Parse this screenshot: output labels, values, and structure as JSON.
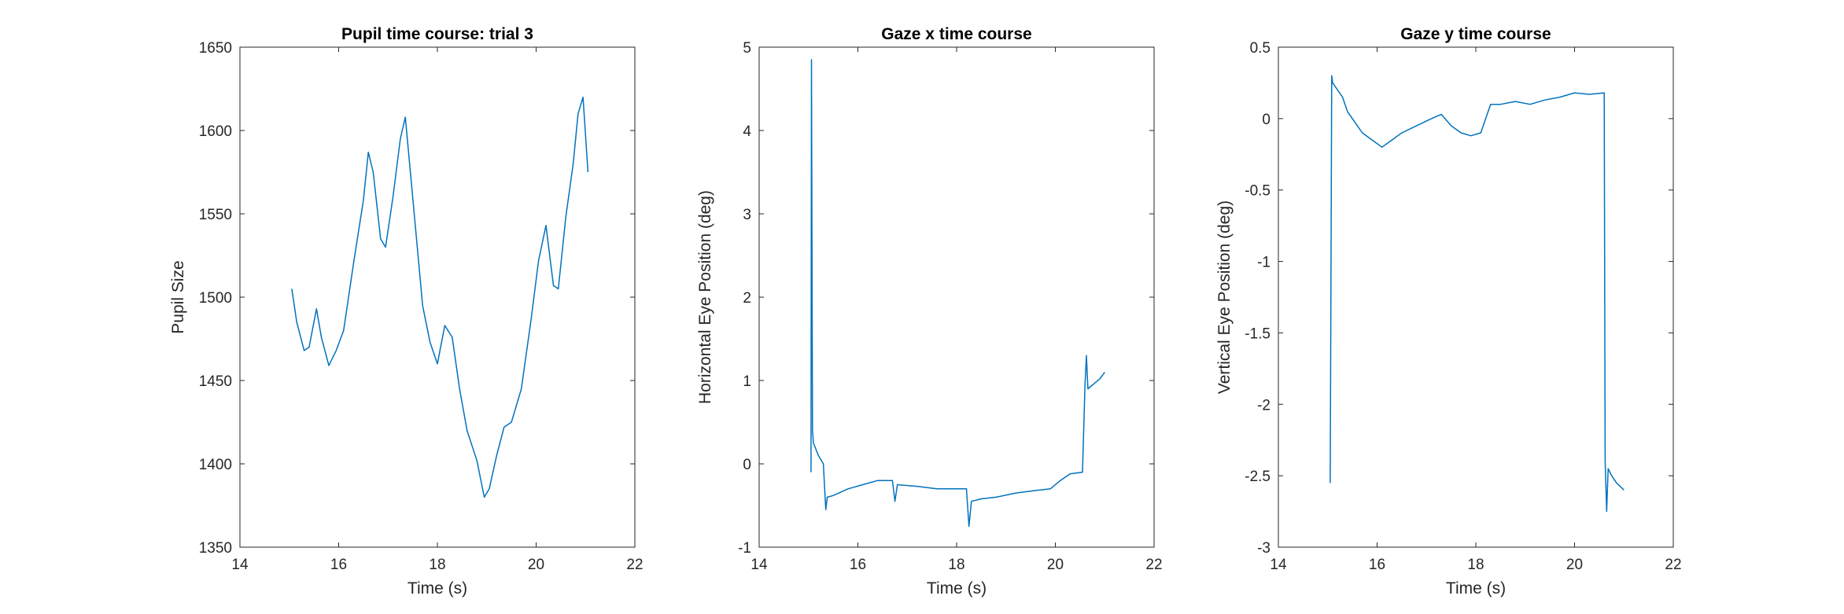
{
  "chart_data": [
    {
      "type": "line",
      "title": "Pupil time course: trial 3",
      "xlabel": "Time (s)",
      "ylabel": "Pupil Size",
      "xlim": [
        14,
        22
      ],
      "ylim": [
        1350,
        1650
      ],
      "xticks": [
        14,
        16,
        18,
        20,
        22
      ],
      "yticks": [
        1350,
        1400,
        1450,
        1500,
        1550,
        1600,
        1650
      ],
      "xtick_labels": [
        "14",
        "16",
        "18",
        "20",
        "22"
      ],
      "ytick_labels": [
        "1350",
        "1400",
        "1450",
        "1500",
        "1550",
        "1600",
        "1650"
      ],
      "color": "#0072BD",
      "series": [
        {
          "x": [
            15.05,
            15.15,
            15.3,
            15.4,
            15.55,
            15.65,
            15.8,
            15.95,
            16.1,
            16.3,
            16.5,
            16.6,
            16.7,
            16.85,
            16.95,
            17.1,
            17.25,
            17.35,
            17.5,
            17.7,
            17.85,
            18.0,
            18.15,
            18.3,
            18.45,
            18.6,
            18.8,
            18.95,
            19.05,
            19.2,
            19.35,
            19.5,
            19.7,
            19.9,
            20.05,
            20.2,
            20.35,
            20.45,
            20.6,
            20.75,
            20.85,
            20.95,
            21.05
          ],
          "y": [
            1505,
            1485,
            1468,
            1470,
            1493,
            1476,
            1459,
            1468,
            1480,
            1520,
            1558,
            1587,
            1575,
            1535,
            1530,
            1560,
            1595,
            1608,
            1560,
            1495,
            1473,
            1460,
            1483,
            1476,
            1445,
            1420,
            1402,
            1380,
            1385,
            1405,
            1422,
            1425,
            1445,
            1487,
            1522,
            1543,
            1507,
            1505,
            1548,
            1580,
            1610,
            1620,
            1575
          ]
        }
      ]
    },
    {
      "type": "line",
      "title": "Gaze x time course",
      "xlabel": "Time (s)",
      "ylabel": "Horizontal Eye Position (deg)",
      "xlim": [
        14,
        22
      ],
      "ylim": [
        -1,
        5
      ],
      "xticks": [
        14,
        16,
        18,
        20,
        22
      ],
      "yticks": [
        -1,
        0,
        1,
        2,
        3,
        4,
        5
      ],
      "xtick_labels": [
        "14",
        "16",
        "18",
        "20",
        "22"
      ],
      "ytick_labels": [
        "-1",
        "0",
        "1",
        "2",
        "3",
        "4",
        "5"
      ],
      "color": "#0072BD",
      "series": [
        {
          "x": [
            15.05,
            15.06,
            15.08,
            15.1,
            15.2,
            15.3,
            15.35,
            15.38,
            15.5,
            15.8,
            16.1,
            16.4,
            16.7,
            16.75,
            16.8,
            17.2,
            17.6,
            18.0,
            18.2,
            18.25,
            18.3,
            18.5,
            18.8,
            19.2,
            19.6,
            19.9,
            20.1,
            20.3,
            20.55,
            20.6,
            20.63,
            20.66,
            20.7,
            20.8,
            20.9,
            21.0
          ],
          "y": [
            -0.1,
            4.85,
            0.4,
            0.25,
            0.1,
            0.0,
            -0.55,
            -0.4,
            -0.38,
            -0.3,
            -0.25,
            -0.2,
            -0.2,
            -0.45,
            -0.25,
            -0.27,
            -0.3,
            -0.3,
            -0.3,
            -0.75,
            -0.45,
            -0.42,
            -0.4,
            -0.35,
            -0.32,
            -0.3,
            -0.2,
            -0.12,
            -0.1,
            0.95,
            1.3,
            0.9,
            0.92,
            0.97,
            1.02,
            1.1
          ]
        }
      ]
    },
    {
      "type": "line",
      "title": "Gaze y time course",
      "xlabel": "Time (s)",
      "ylabel": "Vertical Eye Position (deg)",
      "xlim": [
        14,
        22
      ],
      "ylim": [
        -3,
        0.5
      ],
      "xticks": [
        14,
        16,
        18,
        20,
        22
      ],
      "yticks": [
        -3,
        -2.5,
        -2,
        -1.5,
        -1,
        -0.5,
        0,
        0.5
      ],
      "xtick_labels": [
        "14",
        "16",
        "18",
        "20",
        "22"
      ],
      "ytick_labels": [
        "-3",
        "-2.5",
        "-2",
        "-1.5",
        "-1",
        "-0.5",
        "0",
        "0.5"
      ],
      "color": "#0072BD",
      "series": [
        {
          "x": [
            15.05,
            15.08,
            15.1,
            15.2,
            15.3,
            15.4,
            15.5,
            15.7,
            15.9,
            16.1,
            16.3,
            16.5,
            16.8,
            17.1,
            17.3,
            17.5,
            17.7,
            17.9,
            18.1,
            18.2,
            18.3,
            18.5,
            18.8,
            19.1,
            19.4,
            19.7,
            20.0,
            20.3,
            20.6,
            20.62,
            20.65,
            20.68,
            20.75,
            20.85,
            21.0
          ],
          "y": [
            -2.55,
            0.3,
            0.25,
            0.2,
            0.15,
            0.05,
            0.0,
            -0.1,
            -0.15,
            -0.2,
            -0.15,
            -0.1,
            -0.05,
            0.0,
            0.03,
            -0.05,
            -0.1,
            -0.12,
            -0.1,
            0.0,
            0.1,
            0.1,
            0.12,
            0.1,
            0.13,
            0.15,
            0.18,
            0.17,
            0.18,
            -2.4,
            -2.75,
            -2.45,
            -2.5,
            -2.55,
            -2.6
          ]
        }
      ]
    }
  ]
}
